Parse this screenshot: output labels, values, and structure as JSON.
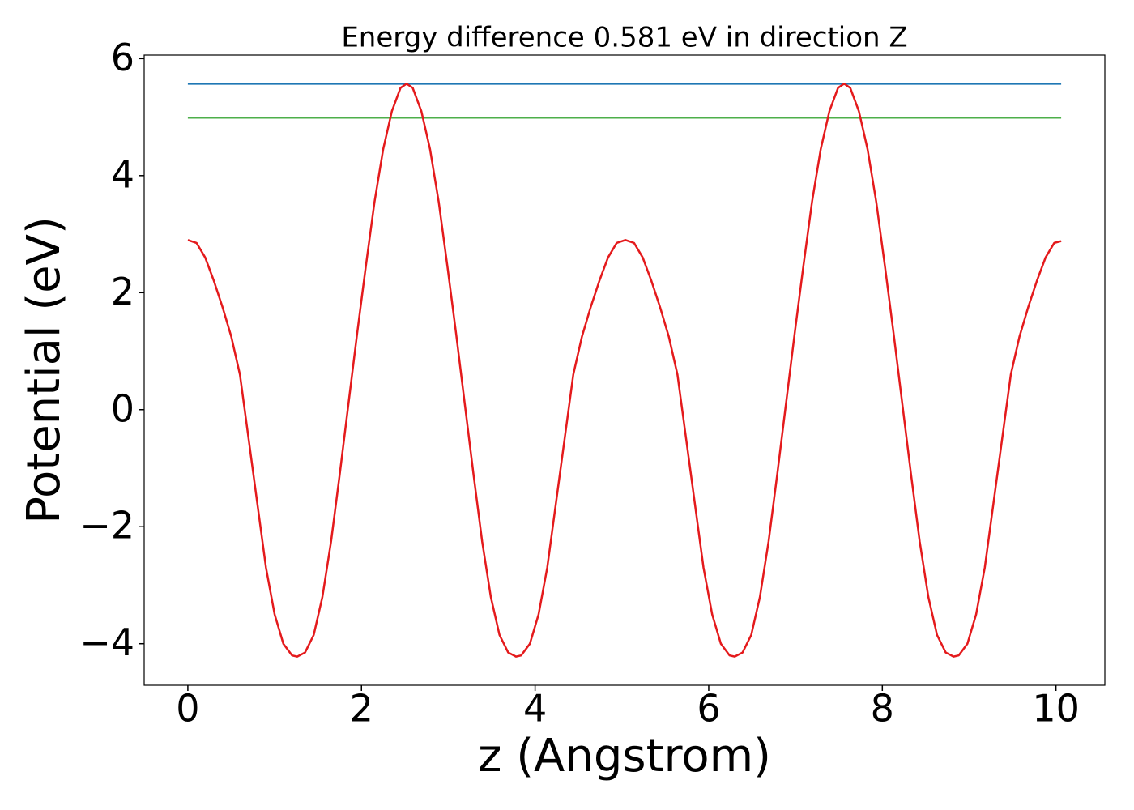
{
  "chart_data": {
    "type": "line",
    "title": "Energy difference 0.581 eV in direction Z",
    "x_label": "z (Angstrom)",
    "y_label": "Potential (eV)",
    "xlim": [
      -0.503,
      10.563
    ],
    "ylim": [
      -4.71,
      6.06
    ],
    "xticks": [
      0,
      2,
      4,
      6,
      8,
      10
    ],
    "yticks": [
      {
        "value": -4,
        "label": "−4"
      },
      {
        "value": -2,
        "label": "−2"
      },
      0,
      2,
      4,
      6
    ],
    "grid": false,
    "series": [
      {
        "color": "#1f77b4",
        "x": [
          0,
          10.06
        ],
        "values": [
          5.57,
          5.57
        ]
      },
      {
        "color": "#4daf4a",
        "x": [
          0,
          10.06
        ],
        "values": [
          4.99,
          4.99
        ]
      },
      {
        "color": "#e41a1c",
        "x": [
          0,
          0.1,
          0.2,
          0.3,
          0.4,
          0.5,
          0.6,
          0.7,
          0.8,
          0.9,
          1.0,
          1.1,
          1.2,
          1.26,
          1.35,
          1.45,
          1.55,
          1.65,
          1.75,
          1.85,
          1.95,
          2.05,
          2.15,
          2.25,
          2.35,
          2.45,
          2.52,
          2.59,
          2.69,
          2.79,
          2.89,
          2.99,
          3.09,
          3.19,
          3.29,
          3.39,
          3.49,
          3.59,
          3.69,
          3.78,
          3.84,
          3.94,
          4.04,
          4.14,
          4.24,
          4.34,
          4.44,
          4.54,
          4.64,
          4.74,
          4.84,
          4.94,
          5.04,
          5.14,
          5.24,
          5.34,
          5.44,
          5.54,
          5.64,
          5.74,
          5.84,
          5.94,
          6.04,
          6.14,
          6.24,
          6.3,
          6.39,
          6.49,
          6.59,
          6.69,
          6.79,
          6.89,
          6.99,
          7.09,
          7.19,
          7.29,
          7.39,
          7.49,
          7.56,
          7.63,
          7.73,
          7.83,
          7.93,
          8.03,
          8.13,
          8.23,
          8.33,
          8.43,
          8.53,
          8.63,
          8.73,
          8.82,
          8.88,
          8.98,
          9.08,
          9.18,
          9.28,
          9.38,
          9.48,
          9.58,
          9.68,
          9.78,
          9.88,
          9.98,
          10.06
        ],
        "values": [
          2.9,
          2.85,
          2.6,
          2.2,
          1.75,
          1.25,
          0.6,
          -0.5,
          -1.6,
          -2.7,
          -3.5,
          -4.0,
          -4.2,
          -4.22,
          -4.15,
          -3.85,
          -3.2,
          -2.25,
          -1.1,
          0.1,
          1.3,
          2.45,
          3.55,
          4.45,
          5.1,
          5.5,
          5.57,
          5.5,
          5.1,
          4.45,
          3.55,
          2.45,
          1.3,
          0.1,
          -1.1,
          -2.25,
          -3.2,
          -3.85,
          -4.15,
          -4.22,
          -4.2,
          -4.0,
          -3.5,
          -2.7,
          -1.6,
          -0.5,
          0.6,
          1.25,
          1.75,
          2.2,
          2.6,
          2.85,
          2.9,
          2.85,
          2.6,
          2.2,
          1.75,
          1.25,
          0.6,
          -0.5,
          -1.6,
          -2.7,
          -3.5,
          -4.0,
          -4.2,
          -4.22,
          -4.15,
          -3.85,
          -3.2,
          -2.25,
          -1.1,
          0.1,
          1.3,
          2.45,
          3.55,
          4.45,
          5.1,
          5.5,
          5.57,
          5.5,
          5.1,
          4.45,
          3.55,
          2.45,
          1.3,
          0.1,
          -1.1,
          -2.25,
          -3.2,
          -3.85,
          -4.15,
          -4.22,
          -4.2,
          -4.0,
          -3.5,
          -2.7,
          -1.6,
          -0.5,
          0.6,
          1.25,
          1.75,
          2.2,
          2.6,
          2.85,
          2.88
        ]
      }
    ]
  }
}
